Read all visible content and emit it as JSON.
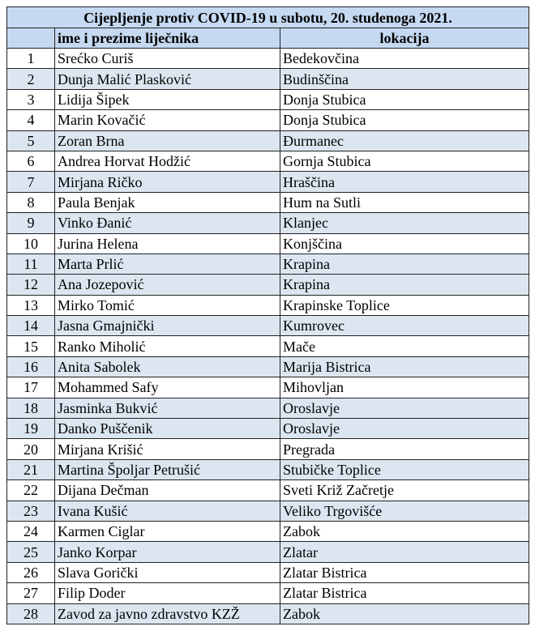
{
  "title": "Cijepljenje protiv COVID-19 u subotu, 20. studenoga 2021.",
  "columns": {
    "num": "",
    "name": "ime i prezime liječnika",
    "location": "lokacija"
  },
  "colors": {
    "header_bg": "#c5d9f1",
    "shaded_row_bg": "#dce6f1"
  },
  "rows": [
    {
      "num": "1",
      "name": "Srećko Curiš",
      "location": "Bedekovčina",
      "shaded": false
    },
    {
      "num": "2",
      "name": "Dunja Malić Plasković",
      "location": "Budinščina",
      "shaded": true
    },
    {
      "num": "3",
      "name": "Lidija Šipek",
      "location": "Donja Stubica",
      "shaded": false
    },
    {
      "num": "4",
      "name": "Marin Kovačić",
      "location": "Donja Stubica",
      "shaded": false
    },
    {
      "num": "5",
      "name": "Zoran Brna",
      "location": "Đurmanec",
      "shaded": true
    },
    {
      "num": "6",
      "name": "Andrea Horvat Hodžić",
      "location": "Gornja Stubica",
      "shaded": false
    },
    {
      "num": "7",
      "name": "Mirjana Ričko",
      "location": "Hraščina",
      "shaded": true
    },
    {
      "num": "8",
      "name": "Paula Benjak",
      "location": "Hum na Sutli",
      "shaded": false
    },
    {
      "num": "9",
      "name": "Vinko Đanić",
      "location": "Klanjec",
      "shaded": true
    },
    {
      "num": "10",
      "name": "Jurina Helena",
      "location": "Konjščina",
      "shaded": false
    },
    {
      "num": "11",
      "name": "Marta Prlić",
      "location": "Krapina",
      "shaded": true
    },
    {
      "num": "12",
      "name": "Ana Jozepović",
      "location": "Krapina",
      "shaded": true
    },
    {
      "num": "13",
      "name": "Mirko Tomić",
      "location": "Krapinske Toplice",
      "shaded": false
    },
    {
      "num": "14",
      "name": "Jasna Gmajnički",
      "location": "Kumrovec",
      "shaded": true
    },
    {
      "num": "15",
      "name": "Ranko Miholić",
      "location": "Mače",
      "shaded": false
    },
    {
      "num": "16",
      "name": "Anita Sabolek",
      "location": "Marija Bistrica",
      "shaded": true
    },
    {
      "num": "17",
      "name": "Mohammed Safy",
      "location": "Mihovljan",
      "shaded": false
    },
    {
      "num": "18",
      "name": "Jasminka Bukvić",
      "location": "Oroslavje",
      "shaded": true
    },
    {
      "num": "19",
      "name": "Danko Puščenik",
      "location": "Oroslavje",
      "shaded": true
    },
    {
      "num": "20",
      "name": "Mirjana Krišić",
      "location": "Pregrada",
      "shaded": false
    },
    {
      "num": "21",
      "name": "Martina Špoljar Petrušić",
      "location": "Stubičke Toplice",
      "shaded": true
    },
    {
      "num": "22",
      "name": "Dijana Dečman",
      "location": "Sveti Križ Začretje",
      "shaded": false
    },
    {
      "num": "23",
      "name": "Ivana Kušić",
      "location": "Veliko Trgovišće",
      "shaded": true
    },
    {
      "num": "24",
      "name": "Karmen Ciglar",
      "location": "Zabok",
      "shaded": false
    },
    {
      "num": "25",
      "name": "Janko Korpar",
      "location": "Zlatar",
      "shaded": true
    },
    {
      "num": "26",
      "name": "Slava Gorički",
      "location": "Zlatar Bistrica",
      "shaded": false
    },
    {
      "num": "27",
      "name": "Filip Doder",
      "location": "Zlatar Bistrica",
      "shaded": false
    },
    {
      "num": "28",
      "name": "Zavod za javno zdravstvo KZŽ",
      "location": "Zabok",
      "shaded": true
    }
  ]
}
